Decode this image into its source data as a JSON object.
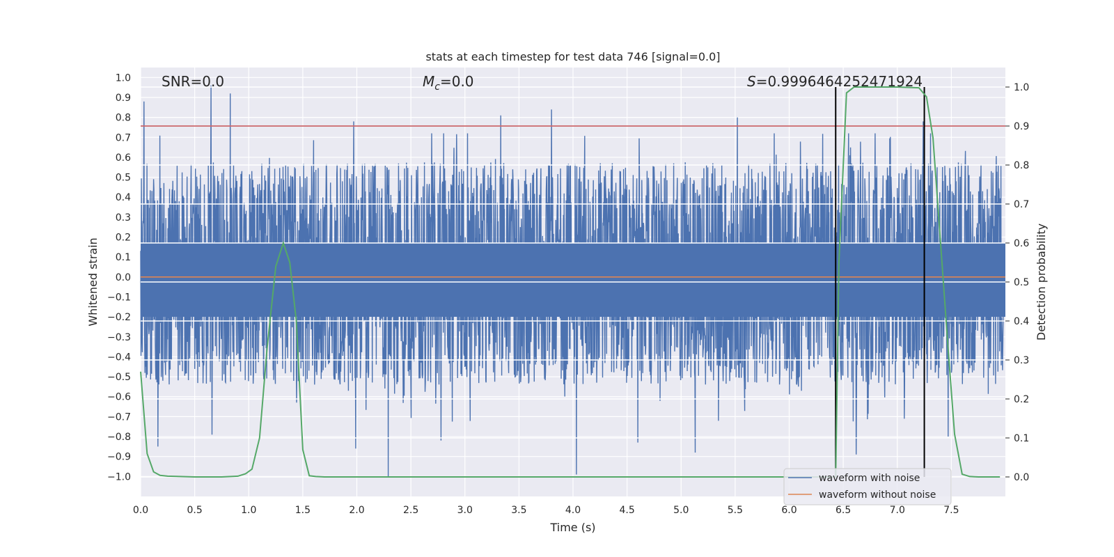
{
  "chart_data": {
    "type": "line",
    "title": "stats at each timestep for test data 746 [signal=0.0]",
    "xlabel": "Time (s)",
    "ylabel_left": "Whitened strain",
    "ylabel_right": "Detection probability",
    "xlim": [
      0.0,
      8.0
    ],
    "ylim_left": [
      -1.1,
      1.05
    ],
    "ylim_right": [
      -0.05,
      1.05
    ],
    "x_ticks": [
      "0.0",
      "0.5",
      "1.0",
      "1.5",
      "2.0",
      "2.5",
      "3.0",
      "3.5",
      "4.0",
      "4.5",
      "5.0",
      "5.5",
      "6.0",
      "6.5",
      "7.0",
      "7.5"
    ],
    "y_ticks_left": [
      "1.0",
      "0.9",
      "0.8",
      "0.7",
      "0.6",
      "0.5",
      "0.4",
      "0.3",
      "0.2",
      "0.1",
      "0.0",
      "-0.1",
      "-0.2",
      "-0.3",
      "-0.4",
      "-0.5",
      "-0.6",
      "-0.7",
      "-0.8",
      "-0.9",
      "-1.0"
    ],
    "y_ticks_right": [
      "1.0",
      "0.9",
      "0.8",
      "0.7",
      "0.6",
      "0.5",
      "0.4",
      "0.3",
      "0.2",
      "0.1",
      "0.0"
    ],
    "grid": true,
    "annotations": {
      "snr": "SNR=0.0",
      "mc_symbol": "M",
      "mc_sub": "c",
      "mc_value": "=0.0",
      "s_symbol": "S",
      "s_value": "=0.9996464252471924"
    },
    "threshold_line": {
      "axis": "right",
      "y": 0.9,
      "color": "#c44e52"
    },
    "vertical_lines": {
      "x": [
        6.43,
        7.25
      ],
      "color": "#000000"
    },
    "series": [
      {
        "name": "waveform with noise",
        "axis": "left",
        "color": "#4c72b0",
        "description_type": "noise",
        "envelope_typical": [
          -0.4,
          0.5
        ],
        "peaks": [
          {
            "x": 0.03,
            "y": 0.88
          },
          {
            "x": 0.65,
            "y": 0.96
          },
          {
            "x": 0.83,
            "y": 0.92
          },
          {
            "x": 1.97,
            "y": 0.78
          },
          {
            "x": 3.33,
            "y": 0.81
          },
          {
            "x": 3.8,
            "y": 0.84
          },
          {
            "x": 5.52,
            "y": 0.8
          },
          {
            "x": 7.24,
            "y": 0.78
          }
        ],
        "troughs": [
          {
            "x": 0.16,
            "y": -0.85
          },
          {
            "x": 0.66,
            "y": -0.79
          },
          {
            "x": 1.99,
            "y": -0.86
          },
          {
            "x": 2.29,
            "y": -1.0
          },
          {
            "x": 2.78,
            "y": -0.82
          },
          {
            "x": 4.03,
            "y": -0.99
          },
          {
            "x": 4.6,
            "y": -0.83
          },
          {
            "x": 5.13,
            "y": -0.88
          },
          {
            "x": 6.62,
            "y": -0.89
          },
          {
            "x": 7.47,
            "y": -0.8
          }
        ]
      },
      {
        "name": "waveform without noise",
        "axis": "left",
        "color": "#dd8452",
        "x": [
          0.0,
          8.0
        ],
        "y": [
          0.0,
          0.0
        ]
      },
      {
        "name": "detection probability",
        "axis": "right",
        "color": "#55a868",
        "x": [
          0.0,
          0.06,
          0.12,
          0.18,
          0.25,
          0.5,
          0.75,
          0.9,
          0.97,
          1.03,
          1.1,
          1.17,
          1.25,
          1.32,
          1.38,
          1.44,
          1.5,
          1.56,
          1.62,
          1.7,
          6.43,
          6.46,
          6.53,
          6.6,
          6.7,
          7.0,
          7.2,
          7.27,
          7.33,
          7.4,
          7.47,
          7.53,
          7.6,
          7.67,
          7.75,
          7.95
        ],
        "y": [
          0.27,
          0.06,
          0.013,
          0.004,
          0.002,
          0.0,
          0.0,
          0.002,
          0.008,
          0.02,
          0.1,
          0.33,
          0.54,
          0.6,
          0.55,
          0.4,
          0.07,
          0.003,
          0.001,
          0.0,
          0.0,
          0.55,
          0.985,
          1.0,
          1.0,
          1.0,
          0.998,
          0.975,
          0.87,
          0.6,
          0.33,
          0.11,
          0.007,
          0.001,
          0.0,
          0.0
        ]
      }
    ],
    "legend": {
      "placement": "bottom-right",
      "entries": [
        {
          "label": "waveform with noise",
          "color": "#4c72b0"
        },
        {
          "label": "waveform without noise",
          "color": "#dd8452"
        }
      ]
    }
  }
}
